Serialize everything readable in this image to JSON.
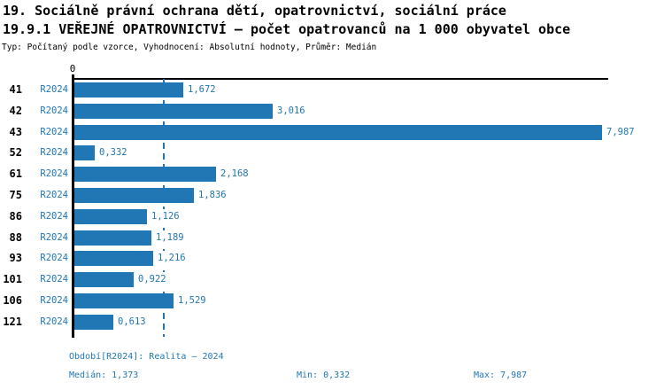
{
  "header": {
    "title_line1": "19. Sociálně právní ochrana dětí, opatrovnictví, sociální práce",
    "title_line2": "19.9.1 VEŘEJNÉ OPATROVNICTVÍ – počet opatrovanců na 1 000 obyvatel obce",
    "subtitle": "Typ: Počítaný podle vzorce, Vyhodnocení: Absolutní hodnoty, Průměr: Medián"
  },
  "chart_data": {
    "type": "bar",
    "orientation": "horizontal",
    "title": "19.9.1 VEŘEJNÉ OPATROVNICTVÍ – počet opatrovanců na 1 000 obyvatel obce",
    "series_name": "R2024",
    "categories": [
      "41",
      "42",
      "43",
      "52",
      "61",
      "75",
      "86",
      "88",
      "93",
      "101",
      "106",
      "121"
    ],
    "values": [
      1.672,
      3.016,
      7.987,
      0.332,
      2.168,
      1.836,
      1.126,
      1.189,
      1.216,
      0.922,
      1.529,
      0.613
    ],
    "value_labels": [
      "1,672",
      "3,016",
      "7,987",
      "0,332",
      "2,168",
      "1,836",
      "1,126",
      "1,189",
      "1,216",
      "0,922",
      "1,529",
      "0,613"
    ],
    "axis": {
      "x_min": 0,
      "x_max": 8.08,
      "zero_tick_label": "0",
      "grid": false
    },
    "median": {
      "value": 1.373,
      "label": "1,373"
    },
    "min": {
      "value": 0.332,
      "label": "0,332"
    },
    "max": {
      "value": 7.987,
      "label": "7,987"
    },
    "colors": {
      "bar": "#2077b4",
      "median_line": "#2077b4",
      "value_text": "#2077b4",
      "series_text": "#2077b4",
      "axis": "#000000"
    },
    "legend_position": "none"
  },
  "footer": {
    "period": "Období[R2024]: Realita – 2024",
    "median": "Medián: 1,373",
    "min": "Min: 0,332",
    "max": "Max: 7,987",
    "text_color": "#2077b4"
  }
}
